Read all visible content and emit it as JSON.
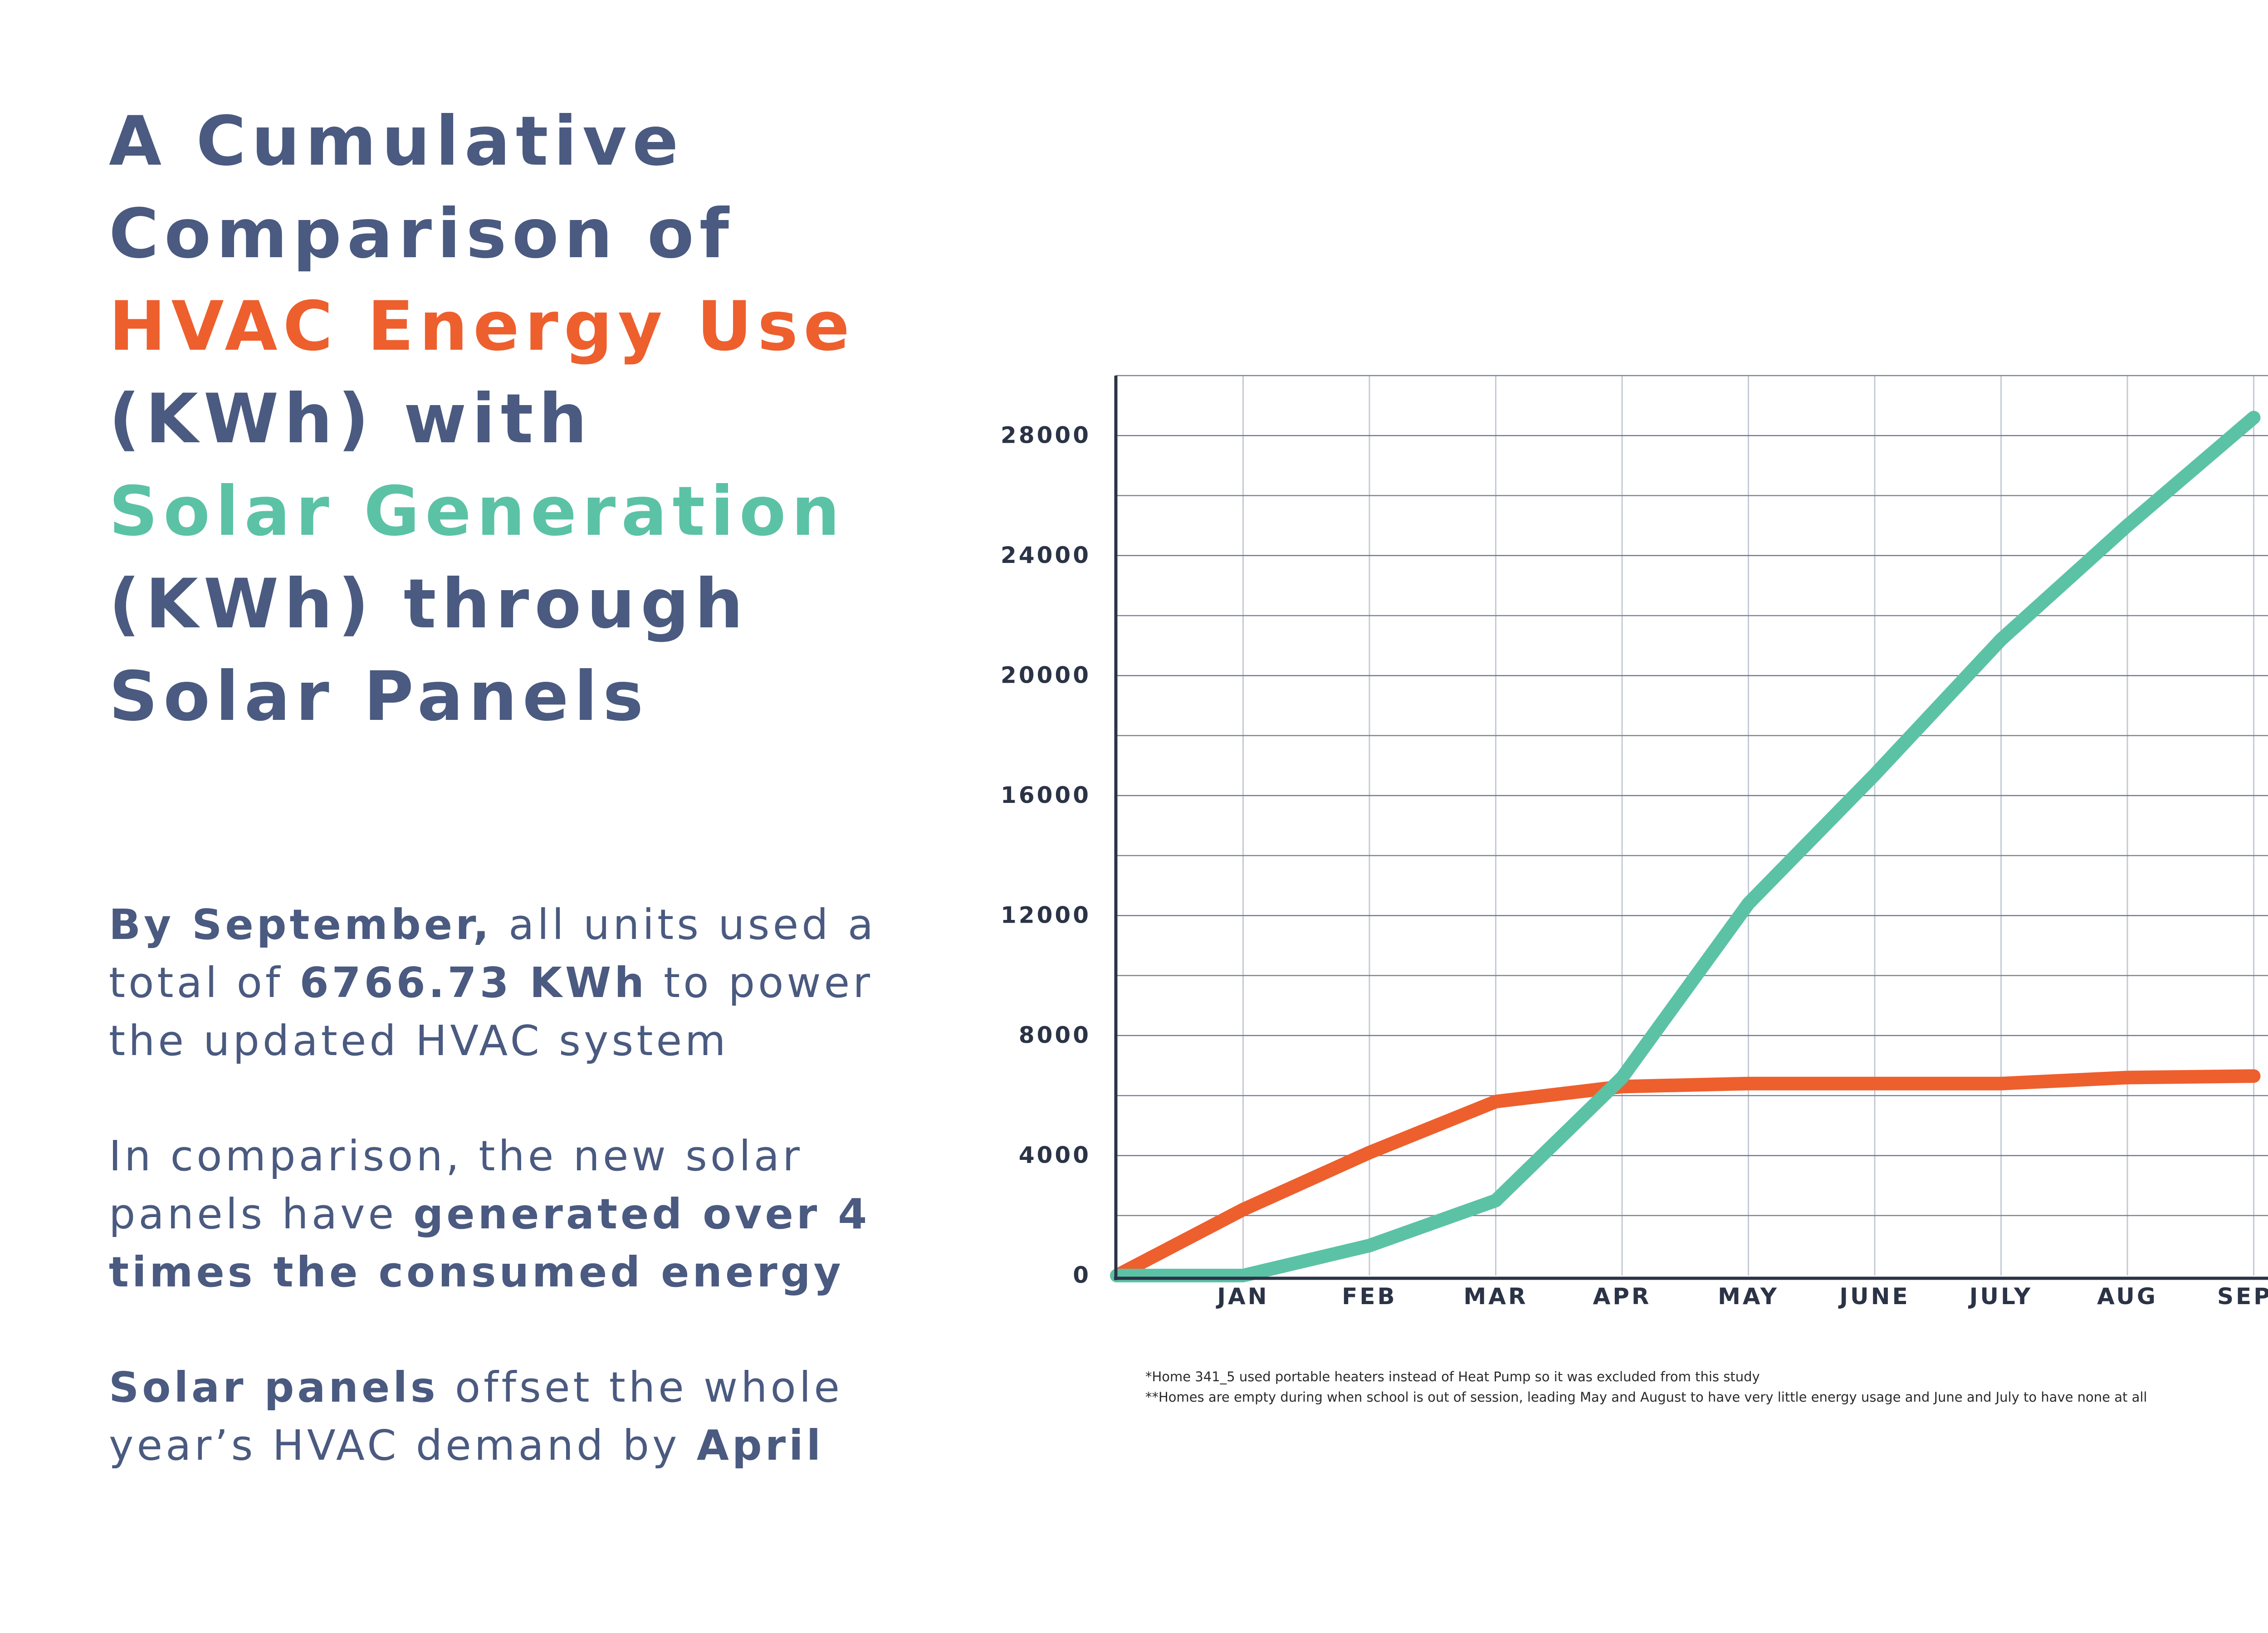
{
  "title": {
    "line1": "A Cumulative",
    "line2": "Comparison of",
    "line3": "HVAC Energy Use",
    "line4": "(KWh) with",
    "line5": "Solar Generation",
    "line6": "(KWh) through",
    "line7": "Solar Panels"
  },
  "summary": {
    "p1_bold1": "By September,",
    "p1_text1": " all units used a total of ",
    "p1_bold2": "6766.73 KWh",
    "p1_text2": " to power the updated HVAC system",
    "p2_text1": "In comparison, the new solar panels have ",
    "p2_bold1": "generated over 4 times the consumed energy",
    "p3_bold1": "Solar panels",
    "p3_text1": " offset the whole year’s HVAC demand by ",
    "p3_bold2": "April"
  },
  "footnotes": {
    "note1": "*Home 341_5 used portable heaters instead of Heat Pump so it was excluded from this study",
    "note2": "**Homes are empty during when school is out of session, leading May and August to have very little energy usage and June and July to have none at all"
  },
  "chart_data": {
    "type": "line",
    "categories": [
      "",
      "JAN",
      "FEB",
      "MAR",
      "APR",
      "MAY",
      "JUNE",
      "JULY",
      "AUG",
      "SEPT"
    ],
    "ylim": [
      0,
      30000
    ],
    "yticks": [
      0,
      4000,
      8000,
      12000,
      16000,
      20000,
      24000,
      28000
    ],
    "grid": true,
    "series": [
      {
        "color": "#ee5f2e",
        "values": [
          0,
          2200,
          4100,
          5800,
          6300,
          6400,
          6400,
          6400,
          6600,
          6650
        ]
      },
      {
        "color": "#5bc2a6",
        "values": [
          0,
          0,
          1000,
          2500,
          6600,
          12400,
          16700,
          21200,
          25000,
          28600
        ]
      }
    ]
  }
}
